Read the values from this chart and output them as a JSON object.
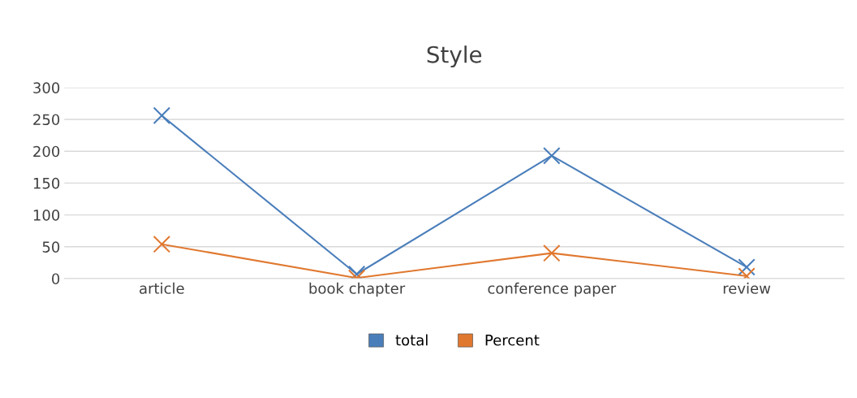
{
  "chart_data": {
    "type": "line",
    "title": "Style",
    "categories": [
      "article",
      "book chapter",
      "conference paper",
      "review"
    ],
    "series": [
      {
        "name": "total",
        "color": "#4a7ebb",
        "values": [
          256,
          7,
          193,
          18
        ]
      },
      {
        "name": "Percent",
        "color": "#e0782f",
        "values": [
          54,
          1,
          40,
          4
        ]
      }
    ],
    "ylim": [
      0,
      300
    ],
    "yticks": [
      0,
      50,
      100,
      150,
      200,
      250,
      300
    ],
    "grid": "y",
    "legend": "bottom",
    "marker": "cross"
  }
}
